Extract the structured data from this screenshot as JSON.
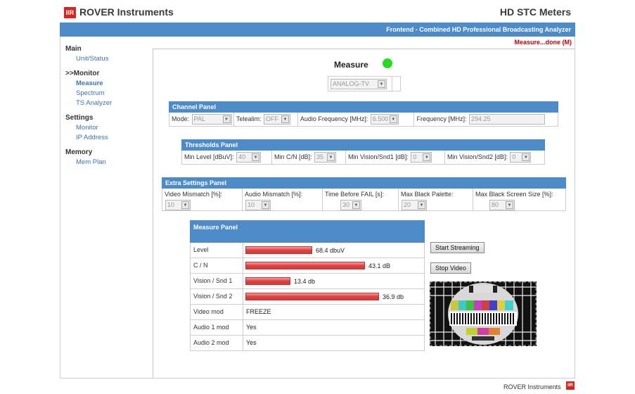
{
  "header": {
    "logo_text": "IIR",
    "brand": "ROVER Instruments",
    "product": "HD STC Meters"
  },
  "subtitle": "Frontend - Combined HD Professional Broadcasting Analyzer",
  "status": "Measure...done (M)",
  "sidebar": {
    "main_label": "Main",
    "unit_status": "Unit/Status",
    "monitor_label": ">>Monitor",
    "measure": "Measure",
    "spectrum": "Spectrum",
    "ts_analyzer": "TS Analyzer",
    "settings_label": "Settings",
    "monitor": "Monitor",
    "ip_address": "IP Address",
    "memory_label": "Memory",
    "mem_plan": "Mem Plan"
  },
  "measure": {
    "title": "Measure",
    "led_color": "#22dd22",
    "type_select": "ANALOG-TV"
  },
  "channel_panel": {
    "title": "Channel Panel",
    "mode_label": "Mode:",
    "mode_value": "PAL",
    "telealim_label": "Telealim:",
    "telealim_value": "OFF",
    "audio_freq_label": "Audio Frequency [MHz]:",
    "audio_freq_value": "6.500",
    "freq_label": "Frequency [MHz]:",
    "freq_value": "294.25"
  },
  "thresholds_panel": {
    "title": "Thresholds Panel",
    "min_level_label": "Min Level [dBuV]:",
    "min_level_value": "40",
    "min_cn_label": "Min C/N [dB]:",
    "min_cn_value": "35",
    "min_vs1_label": "Min Vision/Snd1 [dB]:",
    "min_vs1_value": "0",
    "min_vs2_label": "Min Vision/Snd2 [dB]:",
    "min_vs2_value": "0"
  },
  "extra_panel": {
    "title": "Extra Settings Panel",
    "video_mismatch_label": "Video Mismatch [%]:",
    "video_mismatch_value": "10",
    "audio_mismatch_label": "Audio Mismatch [%]:",
    "audio_mismatch_value": "10",
    "time_fail_label": "Time Before FAIL [s]:",
    "time_fail_value": "30",
    "max_black_palette_label": "Max Black Palette:",
    "max_black_palette_value": "20",
    "max_black_screen_label": "Max Black Screen Size [%]:",
    "max_black_screen_value": "80"
  },
  "measure_panel": {
    "title": "Measure Panel",
    "level_label": "Level",
    "level_value": "68.4 dbuV",
    "level_bar": 0.37,
    "cn_label": "C / N",
    "cn_value": "43.1 dB",
    "cn_bar": 0.66,
    "vs1_label": "Vision / Snd 1",
    "vs1_value": "13.4 db",
    "vs1_bar": 0.25,
    "vs2_label": "Vision / Snd 2",
    "vs2_value": "36.9 db",
    "vs2_bar": 0.74,
    "video_mod_label": "Video mod",
    "video_mod_value": "FREEZE",
    "audio1_label": "Audio 1 mod",
    "audio1_value": "Yes",
    "audio2_label": "Audio 2 mod",
    "audio2_value": "Yes"
  },
  "buttons": {
    "start_streaming": "Start Streaming",
    "stop_video": "Stop Video"
  },
  "footer": {
    "text": "ROVER Instruments",
    "logo_text": "IIR"
  }
}
